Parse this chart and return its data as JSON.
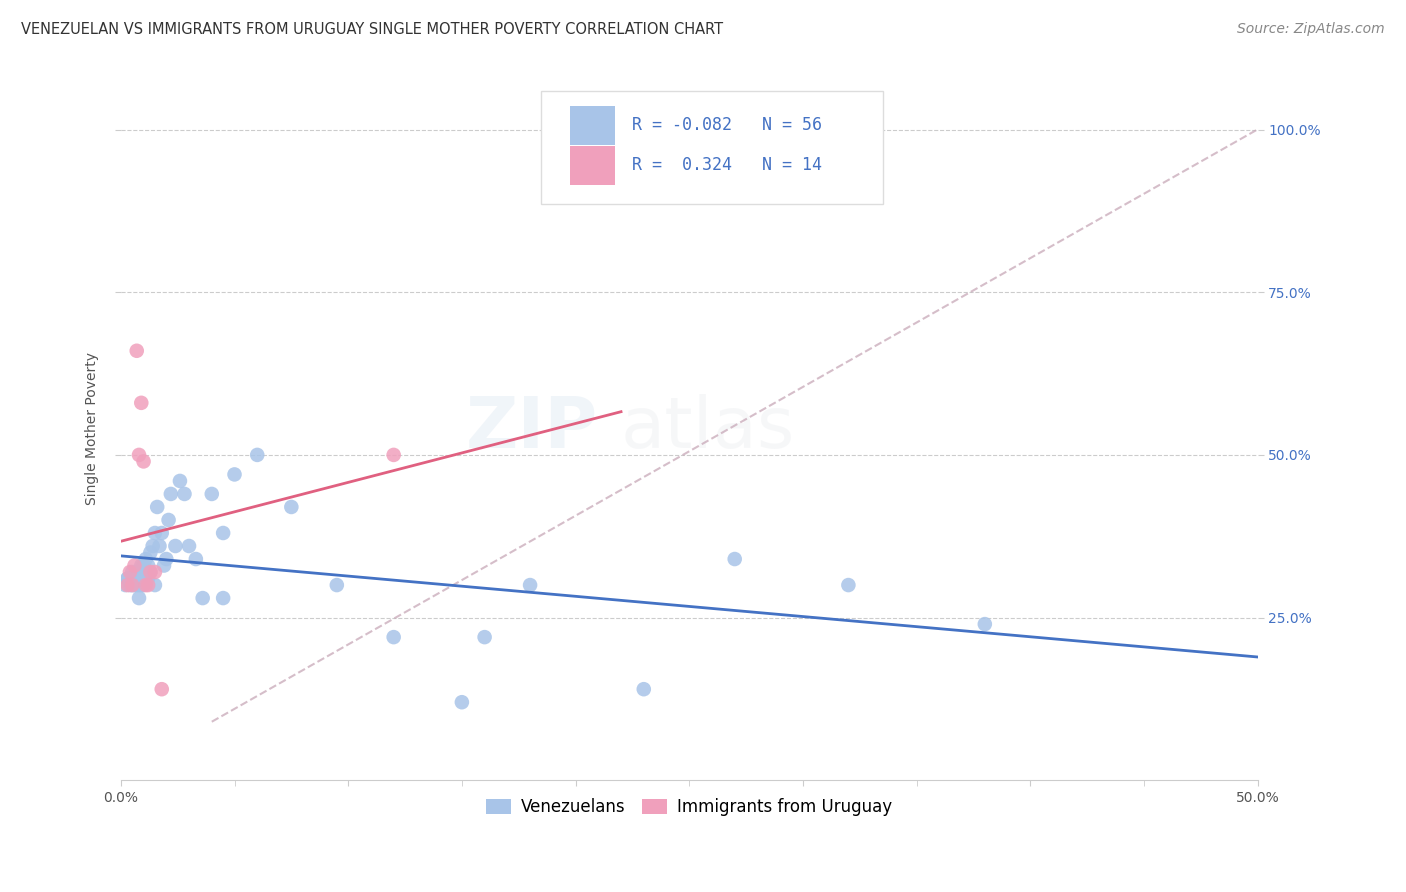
{
  "title": "VENEZUELAN VS IMMIGRANTS FROM URUGUAY SINGLE MOTHER POVERTY CORRELATION CHART",
  "source": "Source: ZipAtlas.com",
  "ylabel": "Single Mother Poverty",
  "right_yticks": [
    "100.0%",
    "75.0%",
    "50.0%",
    "25.0%"
  ],
  "right_ytick_vals": [
    1.0,
    0.75,
    0.5,
    0.25
  ],
  "legend_label1": "Venezuelans",
  "legend_label2": "Immigrants from Uruguay",
  "R1": "-0.082",
  "N1": "56",
  "R2": "0.324",
  "N2": "14",
  "color_venezuelan": "#a8c4e8",
  "color_uruguay": "#f0a0bc",
  "color_line1": "#4472c4",
  "color_line2": "#e06080",
  "color_dashed": "#c8a8b8",
  "watermark_zip": "ZIP",
  "watermark_atlas": "atlas",
  "xlim": [
    0.0,
    0.5
  ],
  "ylim": [
    0.0,
    1.08
  ],
  "venezuelan_x": [
    0.002,
    0.003,
    0.004,
    0.005,
    0.005,
    0.006,
    0.006,
    0.007,
    0.007,
    0.008,
    0.008,
    0.009,
    0.009,
    0.009,
    0.01,
    0.01,
    0.011,
    0.011,
    0.012,
    0.012,
    0.013,
    0.013,
    0.014,
    0.015,
    0.016,
    0.017,
    0.018,
    0.019,
    0.02,
    0.021,
    0.022,
    0.024,
    0.026,
    0.028,
    0.03,
    0.033,
    0.036,
    0.04,
    0.045,
    0.05,
    0.06,
    0.075,
    0.095,
    0.12,
    0.15,
    0.18,
    0.23,
    0.27,
    0.32,
    0.38,
    0.003,
    0.008,
    0.01,
    0.015,
    0.045,
    0.16
  ],
  "venezuelan_y": [
    0.3,
    0.31,
    0.3,
    0.32,
    0.3,
    0.31,
    0.3,
    0.3,
    0.32,
    0.3,
    0.31,
    0.33,
    0.3,
    0.32,
    0.3,
    0.33,
    0.32,
    0.34,
    0.31,
    0.33,
    0.35,
    0.32,
    0.36,
    0.38,
    0.42,
    0.36,
    0.38,
    0.33,
    0.34,
    0.4,
    0.44,
    0.36,
    0.46,
    0.44,
    0.36,
    0.34,
    0.28,
    0.44,
    0.38,
    0.47,
    0.5,
    0.42,
    0.3,
    0.22,
    0.12,
    0.3,
    0.14,
    0.34,
    0.3,
    0.24,
    0.31,
    0.28,
    0.32,
    0.3,
    0.28,
    0.22
  ],
  "uruguay_x": [
    0.003,
    0.004,
    0.005,
    0.006,
    0.007,
    0.008,
    0.009,
    0.01,
    0.011,
    0.012,
    0.013,
    0.015,
    0.018,
    0.12
  ],
  "uruguay_y": [
    0.3,
    0.32,
    0.3,
    0.33,
    0.66,
    0.5,
    0.58,
    0.49,
    0.3,
    0.3,
    0.32,
    0.32,
    0.14,
    0.5
  ],
  "xtick_positions": [
    0.0,
    0.1,
    0.2,
    0.3,
    0.4,
    0.5
  ],
  "xtick_minor": [
    0.05,
    0.15,
    0.25,
    0.35,
    0.45
  ],
  "title_fontsize": 10.5,
  "axis_label_fontsize": 10,
  "tick_fontsize": 10,
  "legend_fontsize": 12,
  "source_fontsize": 10,
  "watermark_fontsize": 52,
  "watermark_alpha": 0.13
}
